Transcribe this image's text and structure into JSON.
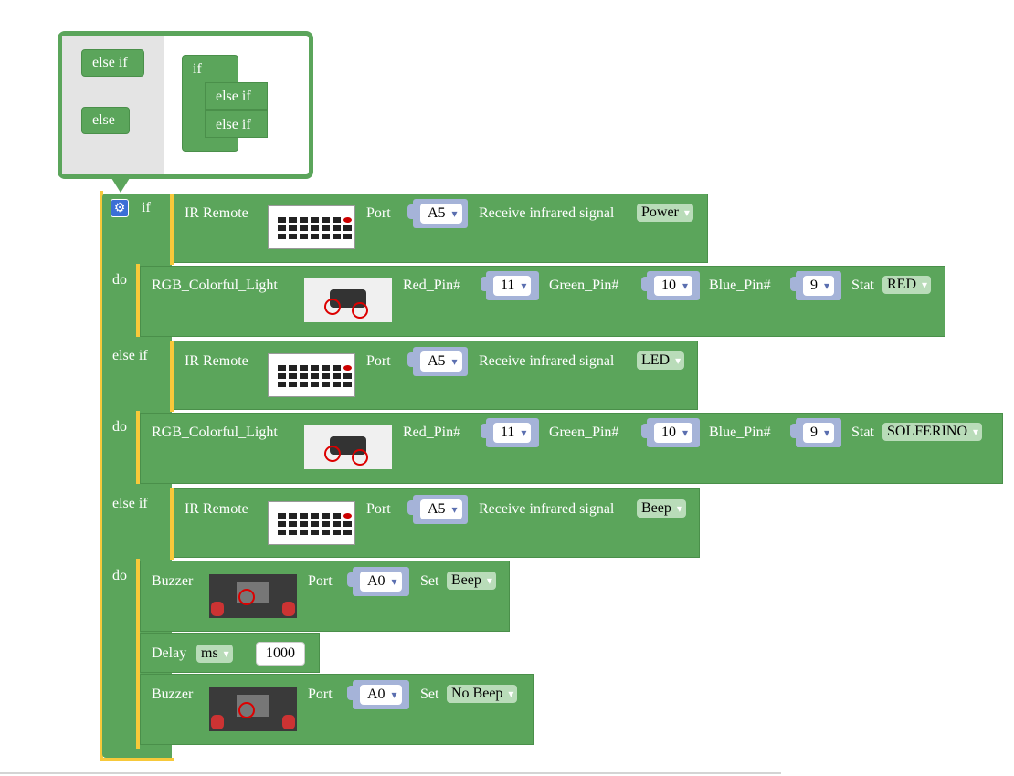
{
  "flyout": {
    "else_if_label": "else if",
    "else_label": "else",
    "if_label": "if",
    "inner_else_if_1": "else if",
    "inner_else_if_2": "else if"
  },
  "main_block": {
    "if_label": "if",
    "do_label": "do",
    "else_if_label": "else if",
    "ir_remote_label": "IR Remote",
    "port_label": "Port",
    "receive_label": "Receive infrared signal",
    "branches": [
      {
        "port": "A5",
        "signal": "Power"
      },
      {
        "port": "A5",
        "signal": "LED"
      },
      {
        "port": "A5",
        "signal": "Beep"
      }
    ]
  },
  "rgb_blocks": [
    {
      "label": "RGB_Colorful_Light",
      "red_label": "Red_Pin#",
      "red": "11",
      "green_label": "Green_Pin#",
      "green": "10",
      "blue_label": "Blue_Pin#",
      "blue": "9",
      "stat_label": "Stat",
      "stat": "RED"
    },
    {
      "label": "RGB_Colorful_Light",
      "red_label": "Red_Pin#",
      "red": "11",
      "green_label": "Green_Pin#",
      "green": "10",
      "blue_label": "Blue_Pin#",
      "blue": "9",
      "stat_label": "Stat",
      "stat": "SOLFERINO"
    }
  ],
  "buzzer_blocks": [
    {
      "label": "Buzzer",
      "port_label": "Port",
      "port": "A0",
      "set_label": "Set",
      "value": "Beep"
    },
    {
      "label": "Buzzer",
      "port_label": "Port",
      "port": "A0",
      "set_label": "Set",
      "value": "No Beep"
    }
  ],
  "delay_block": {
    "label": "Delay",
    "unit": "ms",
    "value": "1000"
  },
  "colors": {
    "block_green": "#5ba55b",
    "highlight_yellow": "#f7c93a",
    "pin_blue": "#a5b3d8",
    "dropdown_green": "#b9dcb9"
  }
}
